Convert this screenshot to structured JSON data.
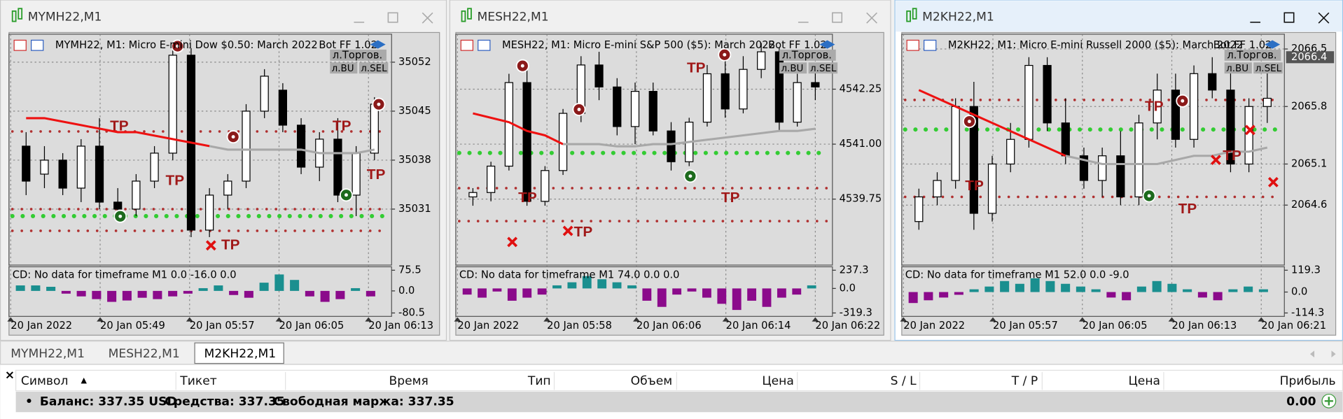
{
  "windows": [
    {
      "title": "MYMH22,M1",
      "header": "MYMH22, M1:  Micro E-mini Dow $0.50: March 2022",
      "bot": "Bot FF 1.02",
      "buttons": [
        "л.Торгов.",
        "л.BU",
        "л.SEL"
      ],
      "tp_label": "TP",
      "ylim": [
        35023,
        35056
      ],
      "yticks": [
        35052,
        35045,
        35038,
        35031
      ],
      "candles": [
        [
          35040,
          35042,
          35033,
          35035
        ],
        [
          35036,
          35040,
          35034,
          35038
        ],
        [
          35038,
          35039,
          35033,
          35034
        ],
        [
          35034,
          35041,
          35032,
          35040
        ],
        [
          35040,
          35044,
          35031,
          35032
        ],
        [
          35032,
          35034,
          35030,
          35031
        ],
        [
          35031,
          35036,
          35030,
          35035
        ],
        [
          35035,
          35040,
          35034,
          35039
        ],
        [
          35039,
          35054,
          35038,
          35053
        ],
        [
          35053,
          35054,
          35027,
          35028
        ],
        [
          35028,
          35034,
          35027,
          35033
        ],
        [
          35033,
          35036,
          35031,
          35035
        ],
        [
          35035,
          35046,
          35034,
          35045
        ],
        [
          35045,
          35051,
          35044,
          35050
        ],
        [
          35048,
          35049,
          35042,
          35043
        ],
        [
          35043,
          35044,
          35036,
          35037
        ],
        [
          35037,
          35042,
          35035,
          35041
        ],
        [
          35041,
          35044,
          35032,
          35033
        ],
        [
          35033,
          35040,
          35030,
          35039
        ],
        [
          35039,
          35047,
          35038,
          35046
        ]
      ],
      "lines": [
        {
          "color": "#ee1111",
          "values": [
            35044,
            35044,
            35043.5,
            35043,
            35042.5,
            35042,
            35042,
            35041.5,
            35041,
            35040.5,
            35040,
            null,
            null,
            null,
            null,
            null,
            null,
            null,
            null,
            null
          ]
        },
        {
          "color": "#a8a8a8",
          "values": [
            null,
            null,
            null,
            null,
            null,
            null,
            null,
            null,
            null,
            null,
            35040,
            35039.5,
            35039.5,
            35039.5,
            35039.5,
            35039.5,
            35039,
            35039,
            35039,
            35039.5
          ]
        }
      ],
      "levels": [
        {
          "value": 35030,
          "color": "#33cc33"
        },
        {
          "value": 35031,
          "color": "#b03030"
        },
        {
          "value": 35027.9,
          "color": "#b03030"
        },
        {
          "value": 35042.1,
          "color": "#b03030"
        }
      ],
      "indicator": {
        "label": "CD: No data for timeframe M1 0.0 -16.0 0.0",
        "ylim": [
          -80.5,
          75.5
        ],
        "yticks": [
          75.5,
          {
            "value": 0,
            "label": "0.0"
          },
          -80.5
        ],
        "up_color": "#1a8f8f",
        "down_color": "#8b0a8b",
        "values": [
          20,
          20,
          15,
          -10,
          -20,
          -30,
          -40,
          -35,
          -25,
          -30,
          -20,
          -10,
          10,
          20,
          -15,
          -25,
          30,
          60,
          40,
          -20,
          -40,
          -30,
          10,
          -20
        ]
      },
      "xticks": [
        "20 Jan 2022",
        "20 Jan 05:49",
        "20 Jan 05:57",
        "20 Jan 06:05",
        "20 Jan 06:13"
      ]
    },
    {
      "title": "MESH22,M1",
      "header": "MESH22, M1:  Micro E-mini S&P 500 ($5): March 2022",
      "bot": "Bot FF 1.02",
      "buttons": [
        "л.Торгов.",
        "л.BU",
        "л.SEL"
      ],
      "tp_label": "TP",
      "ylim": [
        4538.25,
        4543.5
      ],
      "yticks": [
        4542.25,
        {
          "value": 4541,
          "label": "4541.00"
        },
        4539.75
      ],
      "candles": [
        [
          4539.8,
          4540.0,
          4539.6,
          4539.9
        ],
        [
          4539.9,
          4540.6,
          4539.7,
          4540.5
        ],
        [
          4540.5,
          4542.6,
          4540.4,
          4542.4
        ],
        [
          4542.4,
          4542.8,
          4539.6,
          4539.7
        ],
        [
          4539.7,
          4540.5,
          4539.6,
          4540.4
        ],
        [
          4540.4,
          4541.8,
          4540.3,
          4541.7
        ],
        [
          4541.7,
          4543.0,
          4541.5,
          4542.8
        ],
        [
          4542.8,
          4543.1,
          4542.0,
          4542.3
        ],
        [
          4542.3,
          4542.5,
          4541.2,
          4541.4
        ],
        [
          4541.4,
          4542.4,
          4541.0,
          4542.2
        ],
        [
          4542.2,
          4542.4,
          4541.2,
          4541.3
        ],
        [
          4541.3,
          4541.5,
          4540.4,
          4540.6
        ],
        [
          4540.6,
          4541.6,
          4540.5,
          4541.5
        ],
        [
          4541.5,
          4542.8,
          4541.4,
          4542.6
        ],
        [
          4542.6,
          4542.9,
          4541.6,
          4541.8
        ],
        [
          4541.8,
          4543.0,
          4541.7,
          4542.7
        ],
        [
          4542.7,
          4543.3,
          4542.5,
          4543.1
        ],
        [
          4543.1,
          4543.2,
          4541.3,
          4541.5
        ],
        [
          4541.5,
          4542.6,
          4541.4,
          4542.4
        ],
        [
          4542.4,
          4542.7,
          4542.0,
          4542.3
        ]
      ],
      "lines": [
        {
          "color": "#ee1111",
          "values": [
            4541.7,
            4541.6,
            4541.5,
            4541.3,
            4541.2,
            4541.0,
            null,
            null,
            null,
            null,
            null,
            null,
            null,
            null,
            null,
            null,
            null,
            null,
            null,
            null
          ]
        },
        {
          "color": "#a8a8a8",
          "values": [
            null,
            null,
            null,
            null,
            null,
            4541.0,
            4541.0,
            4541.0,
            4540.95,
            4540.95,
            4541.0,
            4541.0,
            4541.05,
            4541.1,
            4541.15,
            4541.2,
            4541.25,
            4541.3,
            4541.3,
            4541.35
          ]
        }
      ],
      "levels": [
        {
          "value": 4540.8,
          "color": "#33cc33"
        },
        {
          "value": 4540.0,
          "color": "#b03030"
        },
        {
          "value": 4539.25,
          "color": "#b03030"
        }
      ],
      "indicator": {
        "label": "CD: No data for timeframe M1 74.0 0.0 0.0",
        "ylim": [
          -319.3,
          237.3
        ],
        "yticks": [
          237.3,
          {
            "value": 0,
            "label": "0.0"
          },
          -319.3
        ],
        "up_color": "#1a8f8f",
        "down_color": "#8b0a8b",
        "values": [
          -80,
          -120,
          -40,
          -160,
          -120,
          -80,
          40,
          80,
          160,
          120,
          80,
          40,
          -160,
          -240,
          -80,
          -40,
          -120,
          -200,
          -280,
          -160,
          -240,
          -120,
          -80,
          40
        ]
      },
      "xticks": [
        "20 Jan 2022",
        "20 Jan 05:58",
        "20 Jan 06:06",
        "20 Jan 06:14",
        "20 Jan 06:22"
      ]
    },
    {
      "title": "M2KH22,M1",
      "header": "M2KH22, M1:  Micro E-mini Russell 2000 ($5): March 2022",
      "bot": "Bot FF 1.02",
      "buttons": [
        "л.Торгов.",
        "л.BU",
        "л.SEL"
      ],
      "tp_label": "TP",
      "ylim": [
        2063.87,
        2066.68
      ],
      "yticks": [
        2066.5,
        2065.8,
        2065.1,
        2064.6
      ],
      "current_price": 2066.4,
      "candles": [
        [
          2064.4,
          2064.8,
          2064.3,
          2064.7
        ],
        [
          2064.7,
          2065.0,
          2064.6,
          2064.9
        ],
        [
          2064.9,
          2065.9,
          2064.8,
          2065.8
        ],
        [
          2065.8,
          2066.1,
          2064.3,
          2064.5
        ],
        [
          2064.5,
          2065.2,
          2064.4,
          2065.1
        ],
        [
          2065.1,
          2065.6,
          2065.0,
          2065.4
        ],
        [
          2065.4,
          2066.4,
          2065.3,
          2066.3
        ],
        [
          2066.3,
          2066.4,
          2065.5,
          2065.6
        ],
        [
          2065.6,
          2065.9,
          2065.1,
          2065.2
        ],
        [
          2065.2,
          2065.3,
          2064.8,
          2064.9
        ],
        [
          2064.9,
          2065.3,
          2064.7,
          2065.2
        ],
        [
          2065.2,
          2065.5,
          2064.6,
          2064.7
        ],
        [
          2064.7,
          2065.7,
          2064.6,
          2065.6
        ],
        [
          2065.6,
          2066.2,
          2065.4,
          2066.0
        ],
        [
          2066.0,
          2066.2,
          2065.3,
          2065.4
        ],
        [
          2065.4,
          2066.3,
          2065.3,
          2066.2
        ],
        [
          2066.2,
          2066.4,
          2065.9,
          2066.0
        ],
        [
          2066.0,
          2066.3,
          2065.0,
          2065.1
        ],
        [
          2065.1,
          2065.9,
          2065.0,
          2065.8
        ],
        [
          2065.8,
          2066.3,
          2065.6,
          2065.9
        ]
      ],
      "lines": [
        {
          "color": "#ee1111",
          "values": [
            2066.0,
            2065.9,
            2065.8,
            2065.7,
            2065.6,
            2065.5,
            2065.4,
            2065.3,
            2065.2,
            null,
            null,
            null,
            null,
            null,
            null,
            null,
            null,
            null,
            null,
            null
          ]
        },
        {
          "color": "#a8a8a8",
          "values": [
            null,
            null,
            null,
            null,
            null,
            null,
            null,
            null,
            2065.2,
            2065.15,
            2065.1,
            2065.1,
            2065.1,
            2065.1,
            2065.15,
            2065.2,
            2065.2,
            2065.25,
            2065.25,
            2065.3
          ]
        }
      ],
      "levels": [
        {
          "value": 2064.7,
          "color": "#b03030"
        },
        {
          "value": 2065.52,
          "color": "#33cc33"
        },
        {
          "value": 2065.88,
          "color": "#b03030"
        }
      ],
      "indicator": {
        "label": "CD: No data for timeframe M1 52.0 0.0 -9.0",
        "ylim": [
          -114.3,
          119.3
        ],
        "yticks": [
          119.3,
          {
            "value": 0,
            "label": "0.0"
          },
          -114.3
        ],
        "up_color": "#1a8f8f",
        "down_color": "#8b0a8b",
        "values": [
          -60,
          -45,
          -30,
          -15,
          15,
          30,
          60,
          45,
          75,
          60,
          45,
          30,
          15,
          -30,
          -45,
          30,
          60,
          45,
          15,
          -30,
          -45,
          15,
          30,
          15
        ]
      },
      "xticks": [
        "20 Jan 2022",
        "20 Jan 05:57",
        "20 Jan 06:05",
        "20 Jan 06:13",
        "20 Jan 06:21"
      ]
    }
  ],
  "tabs": [
    "MYMH22,M1",
    "MESH22,M1",
    "M2KH22,M1"
  ],
  "table": {
    "close": "×",
    "sort": "▲",
    "columns": [
      "Символ",
      "Тикет",
      "Время",
      "Тип",
      "Объем",
      "Цена",
      "S / L",
      "T / P",
      "Цена",
      "Прибыль"
    ],
    "bullet": "•",
    "balance": "Баланс: 337.35 USD",
    "equity": "Средства: 337.35",
    "free_margin": "Свободная маржа: 337.35",
    "profit": "0.00"
  }
}
